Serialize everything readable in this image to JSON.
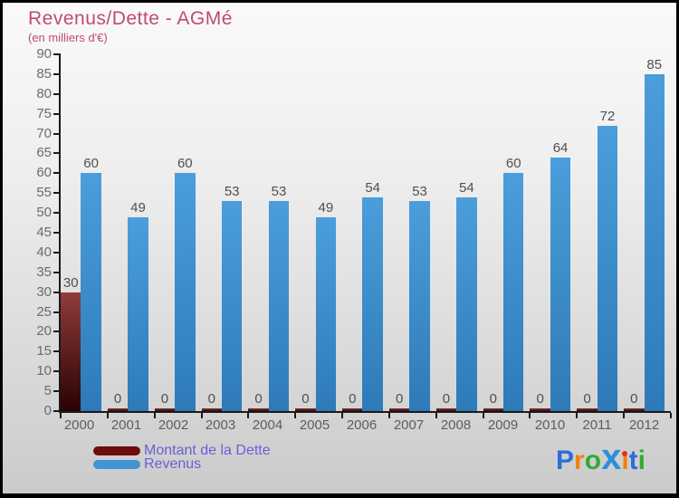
{
  "title": "Revenus/Dette - AGMé",
  "subtitle": "(en milliers d'€)",
  "colors": {
    "title": "#c04a73",
    "legend_text": "#6a5fd6",
    "axis": "#1a1a1a",
    "value_label": "#4f4f4f",
    "tick_label": "#6b6b6b"
  },
  "chart_data": {
    "type": "bar",
    "title": "Revenus/Dette - AGMé",
    "subtitle": "(en milliers d'€)",
    "xlabel": "",
    "ylabel": "",
    "categories": [
      "2000",
      "2001",
      "2002",
      "2003",
      "2004",
      "2005",
      "2006",
      "2007",
      "2008",
      "2009",
      "2010",
      "2011",
      "2012"
    ],
    "series": [
      {
        "name": "Montant de la Dette",
        "values": [
          30,
          0,
          0,
          0,
          0,
          0,
          0,
          0,
          0,
          0,
          0,
          0,
          0
        ],
        "bar_gradient_top": "#8f3c3c",
        "bar_gradient_bottom": "#2a0202",
        "legend_color": "#6d0d0d"
      },
      {
        "name": "Revenus",
        "values": [
          60,
          49,
          60,
          53,
          53,
          49,
          54,
          53,
          54,
          60,
          64,
          72,
          85
        ],
        "bar_gradient_top": "#4b9edb",
        "bar_gradient_bottom": "#2e7ab8",
        "legend_color": "#4394d4"
      }
    ],
    "ylim": [
      0,
      90
    ],
    "ytick_step": 5,
    "grid": false,
    "legend_position": "bottom-left"
  },
  "logo": {
    "text": "Proxiti",
    "letters": [
      {
        "ch": "P",
        "color": "#2b6fd4"
      },
      {
        "ch": "r",
        "color": "#f0820f"
      },
      {
        "ch": "o",
        "color": "#35a835"
      },
      {
        "ch": "x",
        "color": "#2e8fd9",
        "big": true
      },
      {
        "ch": "i",
        "color": "#f0820f",
        "dot": "#e03020"
      },
      {
        "ch": "t",
        "color": "#2b6fd4"
      },
      {
        "ch": "i",
        "color": "#35a835"
      }
    ]
  }
}
